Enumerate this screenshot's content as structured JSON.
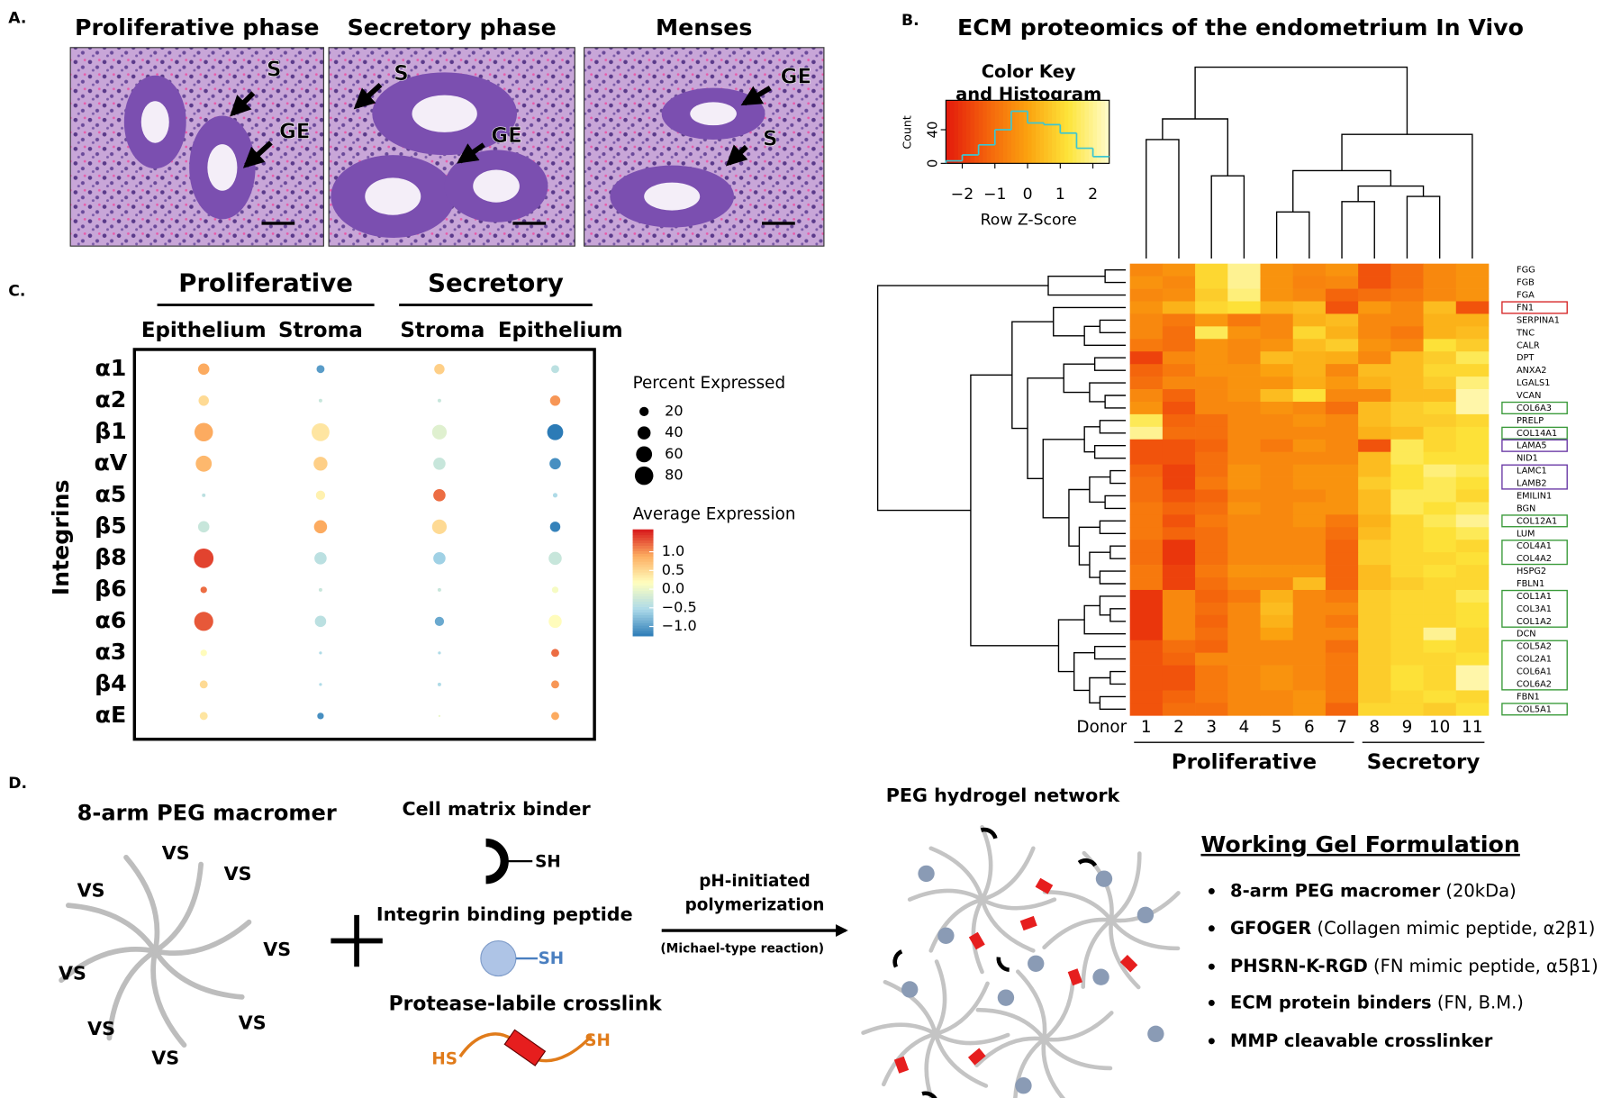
{
  "panel_a": {
    "label": "A.",
    "images": [
      {
        "title": "Proliferative phase",
        "annotations": [
          "S",
          "GE"
        ]
      },
      {
        "title": "Secretory phase",
        "annotations": [
          "S",
          "GE"
        ]
      },
      {
        "title": "Menses",
        "annotations": [
          "GE",
          "S"
        ]
      }
    ]
  },
  "chart_data": [
    {
      "type": "heatmap",
      "panel_label": "B.",
      "title": "ECM proteomics of the endometrium In Vivo",
      "x_label": "Donor",
      "columns": [
        "1",
        "2",
        "3",
        "4",
        "5",
        "6",
        "7",
        "8",
        "9",
        "10",
        "11"
      ],
      "rows": [
        "FGG",
        "FGB",
        "FGA",
        "FN1",
        "SERPINA1",
        "TNC",
        "CALR",
        "DPT",
        "ANXA2",
        "LGALS1",
        "VCAN",
        "COL6A3",
        "PRELP",
        "COL14A1",
        "LAMA5",
        "NID1",
        "LAMC1",
        "LAMB2",
        "EMILIN1",
        "BGN",
        "COL12A1",
        "LUM",
        "COL4A1",
        "COL4A2",
        "HSPG2",
        "FBLN1",
        "COL1A1",
        "COL3A1",
        "COL1A2",
        "DCN",
        "COL5A2",
        "COL2A1",
        "COL6A1",
        "COL6A2",
        "FBN1",
        "COL5A1"
      ],
      "values": [
        [
          -0.5,
          -0.3,
          1.0,
          2.0,
          -0.3,
          -0.5,
          -0.3,
          -1.5,
          -1.0,
          -0.5,
          -0.3
        ],
        [
          -0.3,
          -0.5,
          1.0,
          2.0,
          -0.3,
          -0.6,
          -0.5,
          -1.5,
          -1.0,
          -0.5,
          -0.3
        ],
        [
          -0.5,
          -0.4,
          0.8,
          1.8,
          -0.3,
          -0.5,
          -1.2,
          -1.0,
          -0.8,
          -0.5,
          -0.3
        ],
        [
          -0.3,
          0.3,
          1.0,
          1.2,
          0.3,
          0.5,
          -1.5,
          -0.2,
          -0.5,
          0.5,
          -1.5
        ],
        [
          -0.5,
          -0.8,
          -0.2,
          -0.8,
          -0.5,
          0.3,
          0.5,
          -0.5,
          -0.5,
          0.3,
          0.3
        ],
        [
          -0.5,
          -1.0,
          1.5,
          -0.3,
          -0.5,
          1.0,
          0.3,
          -0.5,
          -0.8,
          0.3,
          0.5
        ],
        [
          -0.8,
          -1.0,
          -0.3,
          -0.5,
          -0.3,
          0.5,
          0.8,
          -0.3,
          -0.5,
          1.2,
          0.8
        ],
        [
          -1.8,
          -0.5,
          -0.3,
          -0.5,
          0.5,
          0.3,
          0.2,
          -0.5,
          0.5,
          0.8,
          1.5
        ],
        [
          -1.2,
          -0.8,
          -0.3,
          -0.3,
          0.0,
          0.3,
          -0.5,
          0.5,
          0.5,
          1.0,
          1.0
        ],
        [
          -1.0,
          -0.5,
          -0.5,
          -0.3,
          -0.3,
          0.2,
          -0.2,
          0.3,
          0.5,
          0.8,
          1.8
        ],
        [
          -0.5,
          -1.2,
          -0.5,
          -0.3,
          0.5,
          1.2,
          -0.5,
          -0.5,
          0.5,
          0.5,
          2.2
        ],
        [
          -0.3,
          -1.5,
          -0.5,
          -0.5,
          -0.3,
          -0.5,
          -1.0,
          0.5,
          0.8,
          1.0,
          2.2
        ],
        [
          1.5,
          -1.2,
          -1.0,
          -0.5,
          -0.5,
          -0.3,
          -0.5,
          0.5,
          0.8,
          0.8,
          1.0
        ],
        [
          2.0,
          -1.0,
          -1.0,
          -0.5,
          -0.5,
          -0.5,
          -0.5,
          0.3,
          0.5,
          1.0,
          1.2
        ],
        [
          -1.5,
          -1.5,
          -1.2,
          -0.5,
          -0.8,
          -0.3,
          -0.5,
          -1.5,
          1.5,
          1.0,
          1.2
        ],
        [
          -1.5,
          -1.5,
          -1.0,
          -0.5,
          -0.5,
          -0.5,
          -0.5,
          0.5,
          1.5,
          1.2,
          1.2
        ],
        [
          -1.2,
          -1.8,
          -1.0,
          -0.3,
          -0.5,
          -0.3,
          -0.3,
          0.5,
          1.2,
          1.8,
          1.5
        ],
        [
          -1.0,
          -1.8,
          -0.8,
          -0.3,
          -0.5,
          -0.3,
          -0.3,
          0.8,
          1.2,
          1.5,
          1.2
        ],
        [
          -1.0,
          -1.5,
          -1.2,
          -0.5,
          -0.5,
          -0.5,
          -0.3,
          0.5,
          1.5,
          1.5,
          1.0
        ],
        [
          -0.8,
          -1.2,
          -1.0,
          -0.3,
          -0.5,
          -0.3,
          -0.3,
          0.5,
          1.5,
          1.2,
          1.5
        ],
        [
          -0.8,
          -1.5,
          -0.8,
          -0.5,
          -0.5,
          -0.3,
          -0.8,
          0.3,
          1.0,
          1.5,
          2.0
        ],
        [
          -0.8,
          -1.2,
          -1.0,
          -0.5,
          -0.5,
          -0.5,
          -1.0,
          0.5,
          1.0,
          1.2,
          1.5
        ],
        [
          -1.0,
          -2.0,
          -1.0,
          -0.5,
          -0.5,
          -0.5,
          -1.2,
          0.8,
          1.0,
          1.2,
          1.0
        ],
        [
          -1.0,
          -2.0,
          -1.0,
          -0.5,
          -0.5,
          -0.5,
          -1.2,
          0.8,
          1.0,
          1.0,
          1.2
        ],
        [
          -0.8,
          -1.8,
          -0.8,
          -0.3,
          -0.3,
          -0.3,
          -1.2,
          0.5,
          1.0,
          1.2,
          1.0
        ],
        [
          -0.8,
          -1.8,
          -1.0,
          -0.5,
          -0.5,
          0.5,
          -1.2,
          0.5,
          0.8,
          1.0,
          1.0
        ],
        [
          -2.0,
          -0.5,
          -1.2,
          -0.8,
          0.3,
          -0.5,
          -0.8,
          0.8,
          1.0,
          1.0,
          1.5
        ],
        [
          -2.0,
          -0.5,
          -1.0,
          -0.5,
          0.5,
          -0.5,
          -0.5,
          0.8,
          1.0,
          1.0,
          1.2
        ],
        [
          -2.0,
          -0.5,
          -1.2,
          -0.5,
          0.3,
          -0.5,
          -0.8,
          0.8,
          1.0,
          1.0,
          1.2
        ],
        [
          -2.0,
          -0.5,
          -1.0,
          -0.5,
          0.0,
          -0.5,
          -0.5,
          0.8,
          1.0,
          2.0,
          1.0
        ],
        [
          -1.5,
          -1.0,
          -1.2,
          -0.5,
          -0.5,
          -0.5,
          -1.0,
          0.8,
          1.0,
          1.2,
          1.0
        ],
        [
          -1.5,
          -1.2,
          -0.5,
          -0.5,
          -0.5,
          -0.5,
          -0.8,
          0.8,
          1.0,
          1.0,
          1.2
        ],
        [
          -1.5,
          -1.5,
          -0.8,
          -0.5,
          -0.3,
          -0.5,
          -0.8,
          0.8,
          1.2,
          1.0,
          2.2
        ],
        [
          -1.5,
          -1.5,
          -0.8,
          -0.5,
          -0.3,
          -0.5,
          -0.8,
          0.8,
          1.2,
          1.0,
          2.2
        ],
        [
          -1.5,
          -1.2,
          -0.8,
          -0.5,
          -0.5,
          -0.3,
          -0.8,
          0.8,
          1.0,
          1.2,
          1.0
        ],
        [
          -1.5,
          -1.0,
          -1.0,
          -0.5,
          -0.5,
          -0.3,
          -1.2,
          1.0,
          1.0,
          0.8,
          1.2
        ]
      ],
      "zlim": [
        -2.5,
        2.5
      ],
      "colors": [
        "#e3190c",
        "#f4620c",
        "#fba20f",
        "#fde43a",
        "#fffccc"
      ],
      "groups": [
        {
          "name": "Proliferative",
          "from": "1",
          "to": "7"
        },
        {
          "name": "Secretory",
          "from": "8",
          "to": "11"
        }
      ],
      "boxes": [
        {
          "from": "FN1",
          "to": "FN1",
          "color": "#d62728"
        },
        {
          "from": "COL6A3",
          "to": "COL6A3",
          "color": "#3a9a3a"
        },
        {
          "from": "COL14A1",
          "to": "COL14A1",
          "color": "#3a9a3a"
        },
        {
          "from": "LAMA5",
          "to": "LAMA5",
          "color": "#6a3aa6"
        },
        {
          "from": "LAMC1",
          "to": "LAMB2",
          "color": "#6a3aa6"
        },
        {
          "from": "COL12A1",
          "to": "COL12A1",
          "color": "#3a9a3a"
        },
        {
          "from": "COL4A1",
          "to": "COL4A2",
          "color": "#3a9a3a"
        },
        {
          "from": "COL1A1",
          "to": "COL1A2",
          "color": "#3a9a3a"
        },
        {
          "from": "COL5A2",
          "to": "COL6A2",
          "color": "#3a9a3a"
        },
        {
          "from": "COL5A1",
          "to": "COL5A1",
          "color": "#3a9a3a"
        }
      ],
      "color_key": {
        "title_lines": [
          "Color Key",
          "and Histogram"
        ],
        "x_label": "Row Z-Score",
        "y_label": "Count",
        "xlim": [
          -2.5,
          2.5
        ],
        "xticks": [
          {
            "value": -2,
            "label": "−2"
          },
          {
            "value": -1,
            "label": "−1"
          },
          0,
          1,
          2
        ],
        "ylim": [
          0,
          75
        ],
        "yticks": [
          0,
          40
        ],
        "bins": [
          -2.5,
          -2,
          -1.5,
          -1,
          -0.5,
          0,
          0.5,
          1,
          1.5,
          2,
          2.5
        ],
        "counts": [
          3,
          10,
          22,
          40,
          62,
          48,
          46,
          36,
          18,
          8
        ],
        "line_color": "#3cc6d0"
      }
    },
    {
      "type": "dot",
      "panel_label": "C.",
      "y_label": "Integrins",
      "groups": [
        {
          "name": "Proliferative",
          "columns": [
            "Epithelium",
            "Stroma"
          ]
        },
        {
          "name": "Secretory",
          "columns": [
            "Stroma",
            "Epithelium"
          ]
        }
      ],
      "rows": [
        "α1",
        "α2",
        "β1",
        "αV",
        "α5",
        "β5",
        "β8",
        "β6",
        "α6",
        "α3",
        "β4",
        "αE"
      ],
      "percent": [
        [
          30,
          15,
          25,
          15
        ],
        [
          25,
          3,
          3,
          25
        ],
        [
          80,
          75,
          50,
          60
        ],
        [
          60,
          45,
          35,
          30
        ],
        [
          3,
          20,
          35,
          5
        ],
        [
          30,
          40,
          50,
          25
        ],
        [
          90,
          35,
          35,
          40
        ],
        [
          10,
          3,
          3,
          10
        ],
        [
          85,
          30,
          20,
          40
        ],
        [
          10,
          2,
          2,
          15
        ],
        [
          15,
          2,
          3,
          15
        ],
        [
          15,
          10,
          1,
          15
        ]
      ],
      "average": [
        [
          0.9,
          -1.0,
          0.6,
          -0.4
        ],
        [
          0.5,
          -0.3,
          -0.3,
          1.0
        ],
        [
          0.9,
          0.4,
          -0.1,
          -1.3
        ],
        [
          0.8,
          0.6,
          -0.3,
          -1.1
        ],
        [
          -0.4,
          0.3,
          1.2,
          -0.5
        ],
        [
          -0.3,
          0.9,
          0.5,
          -1.2
        ],
        [
          1.4,
          -0.4,
          -0.6,
          -0.3
        ],
        [
          1.2,
          -0.3,
          -0.3,
          0.1
        ],
        [
          1.3,
          -0.4,
          -0.9,
          0.2
        ],
        [
          0.2,
          -0.5,
          -0.5,
          1.2
        ],
        [
          0.5,
          -0.5,
          -0.5,
          1.0
        ],
        [
          0.4,
          -1.1,
          0.0,
          0.9
        ]
      ],
      "size_legend": {
        "title": "Percent Expressed",
        "ticks": [
          20,
          40,
          60,
          80
        ]
      },
      "color_legend": {
        "title": "Average Expression",
        "clim": [
          -1.25,
          1.6
        ],
        "ticks": [
          {
            "value": 1,
            "label": "1.0"
          },
          {
            "value": 0.5,
            "label": "0.5"
          },
          {
            "value": 0,
            "label": "0.0"
          },
          {
            "value": -0.5,
            "label": "−0.5"
          },
          {
            "value": -1,
            "label": "−1.0"
          }
        ],
        "colors": [
          "#2c7bb6",
          "#abd9e9",
          "#ffffbf",
          "#fdae61",
          "#d7191c"
        ]
      }
    }
  ],
  "panel_d": {
    "label": "D.",
    "macromer": {
      "title": "8-arm PEG macromer",
      "arm_labels": [
        "VS",
        "VS",
        "VS",
        "VS",
        "VS",
        "VS",
        "VS",
        "VS"
      ]
    },
    "components": [
      {
        "title": "Cell matrix binder",
        "tags": [
          "SH"
        ]
      },
      {
        "title": "Integrin binding peptide",
        "tags": [
          "SH"
        ]
      },
      {
        "title": "Protease-labile crosslink",
        "tags": [
          "HS",
          "SH"
        ]
      }
    ],
    "reaction": {
      "lines": [
        "pH-initiated",
        "polymerization"
      ],
      "note": "(Michael-type reaction)"
    },
    "network": {
      "title": "PEG hydrogel network"
    },
    "formulation": {
      "title": "Working Gel Formulation",
      "items": [
        {
          "bold": "8-arm PEG macromer",
          "rest": " (20kDa)"
        },
        {
          "bold": "GFOGER",
          "rest": " (Collagen mimic peptide, α2β1)"
        },
        {
          "bold": "PHSRN-K-RGD",
          "rest": " (FN mimic peptide, α5β1)"
        },
        {
          "bold": "ECM protein binders",
          "rest": " (FN, B.M.)"
        },
        {
          "bold": "MMP cleavable crosslinker",
          "rest": ""
        }
      ]
    }
  }
}
